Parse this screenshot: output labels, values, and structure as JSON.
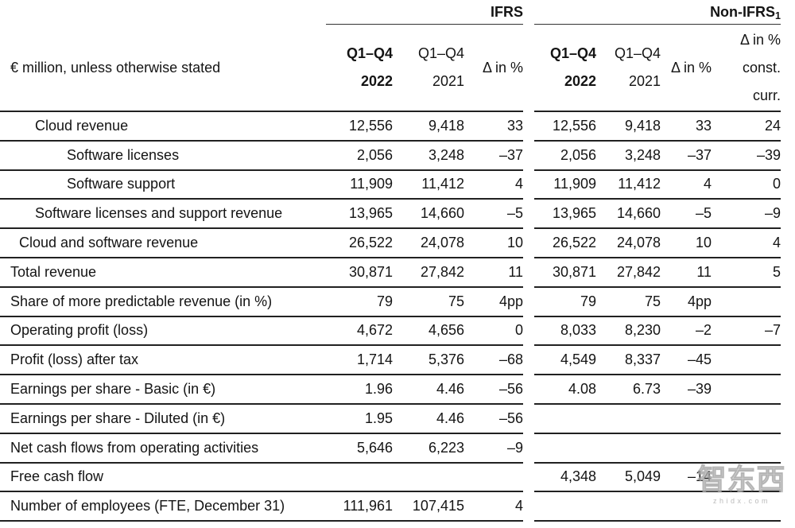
{
  "table": {
    "unit_label": "€ million, unless otherwise stated",
    "groups": {
      "ifrs": {
        "label": "IFRS"
      },
      "non_ifrs": {
        "label": "Non-IFRS",
        "footnote": "1"
      }
    },
    "columns": {
      "period_2022": {
        "line1": "Q1–Q4",
        "line2": "2022"
      },
      "period_2021": {
        "line1": "Q1–Q4",
        "line2": "2021"
      },
      "delta": "Δ in %",
      "delta_const_curr": {
        "line1": "Δ in %",
        "line2": "const.",
        "line3": "curr."
      }
    },
    "rows": [
      {
        "label": "Cloud revenue",
        "indent": 2,
        "ifrs": [
          "12,556",
          "9,418",
          "33"
        ],
        "non_ifrs": [
          "12,556",
          "9,418",
          "33",
          "24"
        ]
      },
      {
        "label": "Software licenses",
        "indent": 3,
        "ifrs": [
          "2,056",
          "3,248",
          "–37"
        ],
        "non_ifrs": [
          "2,056",
          "3,248",
          "–37",
          "–39"
        ]
      },
      {
        "label": "Software support",
        "indent": 3,
        "ifrs": [
          "11,909",
          "11,412",
          "4"
        ],
        "non_ifrs": [
          "11,909",
          "11,412",
          "4",
          "0"
        ]
      },
      {
        "label": "Software licenses and support revenue",
        "indent": 2,
        "ifrs": [
          "13,965",
          "14,660",
          "–5"
        ],
        "non_ifrs": [
          "13,965",
          "14,660",
          "–5",
          "–9"
        ]
      },
      {
        "label": "Cloud and software revenue",
        "indent": 1,
        "ifrs": [
          "26,522",
          "24,078",
          "10"
        ],
        "non_ifrs": [
          "26,522",
          "24,078",
          "10",
          "4"
        ]
      },
      {
        "label": "Total revenue",
        "indent": 0,
        "ifrs": [
          "30,871",
          "27,842",
          "11"
        ],
        "non_ifrs": [
          "30,871",
          "27,842",
          "11",
          "5"
        ]
      },
      {
        "label": "Share of more predictable revenue (in %)",
        "indent": 0,
        "ifrs": [
          "79",
          "75",
          "4pp"
        ],
        "non_ifrs": [
          "79",
          "75",
          "4pp",
          ""
        ]
      },
      {
        "label": "Operating profit (loss)",
        "indent": 0,
        "ifrs": [
          "4,672",
          "4,656",
          "0"
        ],
        "non_ifrs": [
          "8,033",
          "8,230",
          "–2",
          "–7"
        ]
      },
      {
        "label": "Profit (loss) after tax",
        "indent": 0,
        "ifrs": [
          "1,714",
          "5,376",
          "–68"
        ],
        "non_ifrs": [
          "4,549",
          "8,337",
          "–45",
          ""
        ]
      },
      {
        "label": "Earnings per share - Basic (in €)",
        "indent": 0,
        "ifrs": [
          "1.96",
          "4.46",
          "–56"
        ],
        "non_ifrs": [
          "4.08",
          "6.73",
          "–39",
          ""
        ]
      },
      {
        "label": "Earnings per share - Diluted (in €)",
        "indent": 0,
        "ifrs": [
          "1.95",
          "4.46",
          "–56"
        ],
        "non_ifrs": [
          "",
          "",
          "",
          ""
        ]
      },
      {
        "label": "Net cash flows from operating activities",
        "indent": 0,
        "ifrs": [
          "5,646",
          "6,223",
          "–9"
        ],
        "non_ifrs": [
          "",
          "",
          "",
          ""
        ]
      },
      {
        "label": "Free cash flow",
        "indent": 0,
        "ifrs": [
          "",
          "",
          ""
        ],
        "non_ifrs": [
          "4,348",
          "5,049",
          "–14",
          ""
        ]
      },
      {
        "label": "Number of employees (FTE, December 31)",
        "indent": 0,
        "ifrs": [
          "111,961",
          "107,415",
          "4"
        ],
        "non_ifrs": [
          "",
          "",
          "",
          ""
        ]
      }
    ]
  },
  "watermark": {
    "logo": "智东西",
    "domain": "zhidx.com"
  },
  "colors": {
    "text": "#141414",
    "border": "#212121",
    "watermark": "#bbbbbb"
  }
}
